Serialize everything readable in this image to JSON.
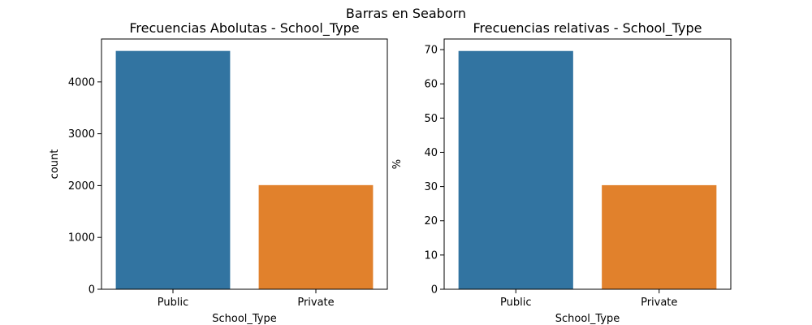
{
  "figure": {
    "suptitle": "Barras en Seaborn"
  },
  "chart_data": [
    {
      "type": "bar",
      "title": "Frecuencias Abolutas - School_Type",
      "xlabel": "School_Type",
      "ylabel": "count",
      "categories": [
        "Public",
        "Private"
      ],
      "values": [
        4598,
        2009
      ],
      "colors": [
        "#3274a1",
        "#e1812c"
      ],
      "yticks": [
        0,
        1000,
        2000,
        3000,
        4000
      ],
      "ylim": [
        0,
        4828
      ],
      "grid": false,
      "legend": "none"
    },
    {
      "type": "bar",
      "title": "Frecuencias relativas - School_Type",
      "xlabel": "School_Type",
      "ylabel": "%",
      "categories": [
        "Public",
        "Private"
      ],
      "values": [
        69.6,
        30.4
      ],
      "colors": [
        "#3274a1",
        "#e1812c"
      ],
      "yticks": [
        0,
        10,
        20,
        30,
        40,
        50,
        60,
        70
      ],
      "ylim": [
        0,
        73.1
      ],
      "grid": false,
      "legend": "none"
    }
  ]
}
